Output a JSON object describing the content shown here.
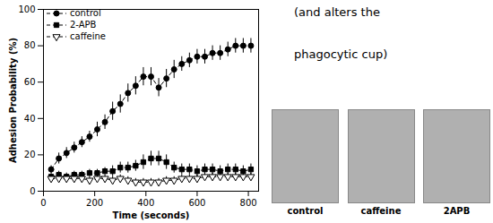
{
  "chart_data": {
    "type": "line",
    "xlabel": "Time (seconds)",
    "ylabel": "Adhesion Probability (%)",
    "x": [
      30,
      60,
      90,
      120,
      150,
      180,
      210,
      240,
      270,
      300,
      330,
      360,
      390,
      420,
      450,
      480,
      510,
      540,
      570,
      600,
      630,
      660,
      690,
      720,
      750,
      780,
      810
    ],
    "series": [
      {
        "name": "control",
        "color": "#000000",
        "marker": "circle",
        "line_style": "dashed",
        "values": [
          12,
          18,
          21,
          24,
          27,
          30,
          34,
          38,
          44,
          48,
          54,
          58,
          63,
          63,
          57,
          62,
          67,
          70,
          72,
          74,
          74,
          76,
          76,
          78,
          80,
          80,
          80
        ],
        "errors": [
          2,
          3,
          3,
          3,
          3,
          3,
          4,
          4,
          5,
          5,
          5,
          5,
          5,
          5,
          5,
          5,
          5,
          4,
          4,
          4,
          4,
          4,
          4,
          4,
          4,
          4,
          4
        ]
      },
      {
        "name": "2-APB",
        "color": "#000000",
        "marker": "square",
        "line_style": "dashed",
        "values": [
          8,
          9,
          8,
          9,
          9,
          10,
          10,
          11,
          11,
          13,
          13,
          14,
          16,
          18,
          18,
          16,
          13,
          12,
          12,
          11,
          12,
          12,
          11,
          12,
          12,
          11,
          12
        ],
        "errors": [
          2,
          2,
          2,
          2,
          2,
          2,
          2,
          2,
          3,
          3,
          3,
          3,
          4,
          4,
          4,
          4,
          3,
          3,
          3,
          3,
          3,
          3,
          3,
          3,
          3,
          3,
          3
        ]
      },
      {
        "name": "caffeine",
        "color": "#000000",
        "marker": "triangle-down-open",
        "line_style": "dashed",
        "values": [
          7,
          7,
          7,
          7,
          7,
          6,
          7,
          7,
          6,
          7,
          6,
          5,
          5,
          5,
          5,
          6,
          6,
          7,
          7,
          7,
          8,
          8,
          8,
          8,
          8,
          8,
          8
        ],
        "errors": [
          2,
          2,
          2,
          2,
          2,
          2,
          2,
          2,
          2,
          2,
          2,
          2,
          2,
          2,
          2,
          2,
          2,
          2,
          2,
          2,
          2,
          2,
          2,
          2,
          2,
          2,
          2
        ]
      }
    ],
    "xlim": [
      0,
      840
    ],
    "ylim": [
      0,
      100
    ],
    "xticks": [
      0,
      200,
      400,
      600,
      800
    ],
    "yticks": [
      0,
      20,
      40,
      60,
      80,
      100
    ],
    "grid": false,
    "legend": "upper left",
    "annotations": [
      "(and alters the",
      "phagocytic cup)",
      "control",
      "caffeine",
      "2APB"
    ]
  }
}
